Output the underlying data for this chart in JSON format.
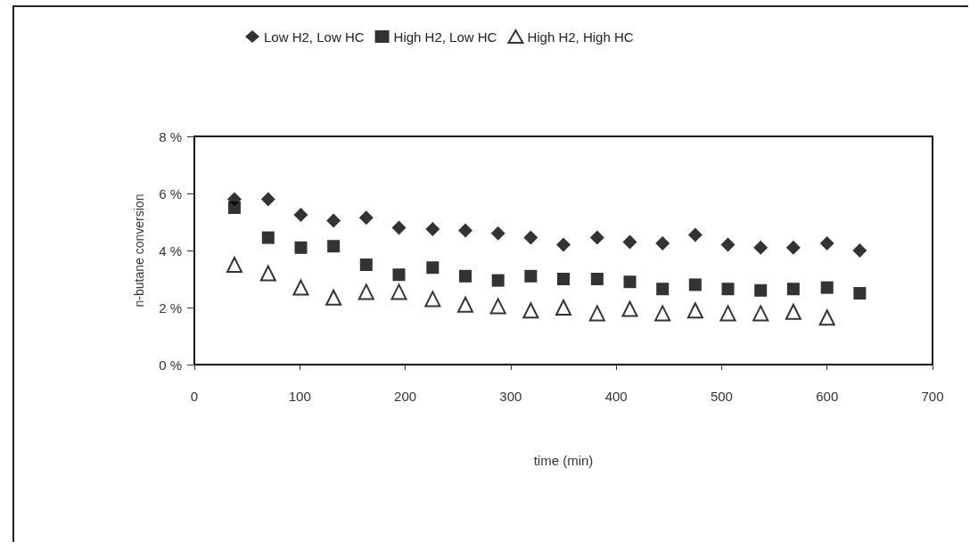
{
  "chart_data": {
    "type": "scatter",
    "xlabel": "time (min)",
    "ylabel": "n-butane conversion",
    "x": [
      38,
      70,
      101,
      132,
      163,
      194,
      226,
      257,
      288,
      319,
      350,
      382,
      413,
      444,
      475,
      506,
      537,
      568,
      600,
      631
    ],
    "series": [
      {
        "name": "Low H2, Low HC",
        "color": "#000000",
        "marker": "diamond",
        "values": [
          5.8,
          5.8,
          5.25,
          5.05,
          5.15,
          4.8,
          4.75,
          4.7,
          4.6,
          4.45,
          4.2,
          4.45,
          4.3,
          4.25,
          4.55,
          4.2,
          4.1,
          4.1,
          4.25,
          4.0
        ]
      },
      {
        "name": "High H2, Low HC",
        "color": "#000000",
        "marker": "square",
        "values": [
          5.5,
          4.45,
          4.1,
          4.15,
          3.5,
          3.15,
          3.4,
          3.1,
          2.95,
          3.1,
          3.0,
          3.0,
          2.9,
          2.65,
          2.8,
          2.65,
          2.6,
          2.65,
          2.7,
          2.5
        ]
      },
      {
        "name": "High H2, High HC",
        "color": "#000000",
        "marker": "triangle",
        "values": [
          3.5,
          3.2,
          2.7,
          2.35,
          2.55,
          2.55,
          2.3,
          2.1,
          2.05,
          1.9,
          2.0,
          1.8,
          1.95,
          1.8,
          1.9,
          1.8,
          1.8,
          1.85,
          1.65,
          null
        ]
      }
    ],
    "xlim": [
      0,
      700
    ],
    "xticks": [
      0,
      100,
      200,
      300,
      400,
      500,
      600,
      700
    ],
    "ylim": [
      0,
      8
    ],
    "yticks": [
      {
        "value": 0,
        "label": "0 %"
      },
      {
        "value": 2,
        "label": "2 %"
      },
      {
        "value": 4,
        "label": "4 %"
      },
      {
        "value": 6,
        "label": "6 %"
      },
      {
        "value": 8,
        "label": "8 %"
      }
    ],
    "grid": false,
    "legend": "top"
  }
}
